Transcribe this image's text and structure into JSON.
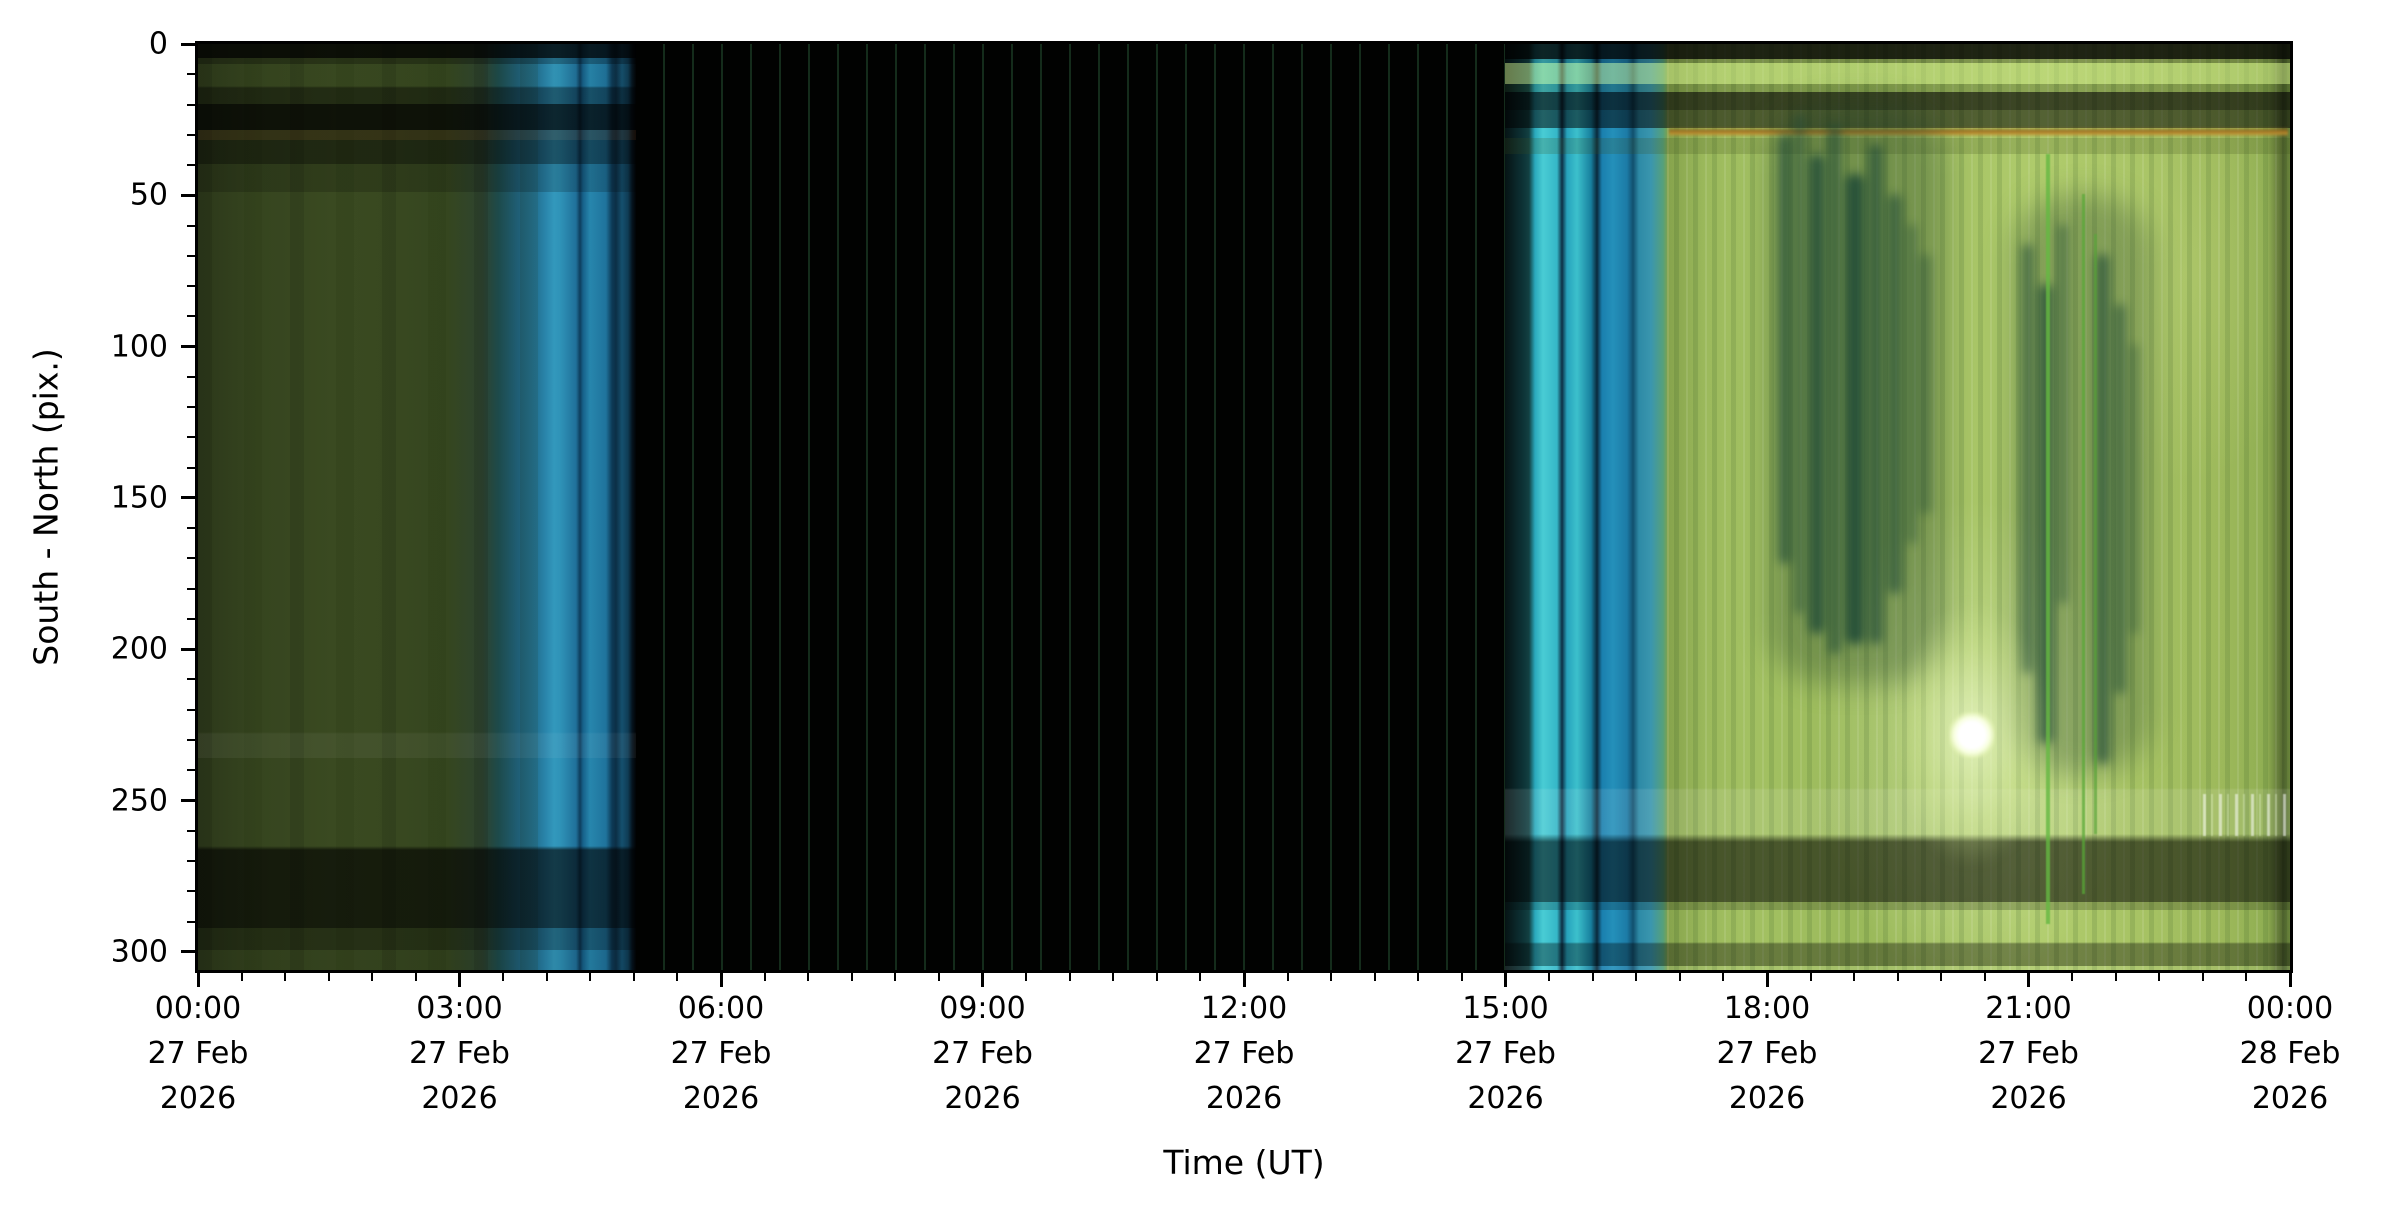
{
  "figure": {
    "xlabel": "Time (UT)",
    "ylabel": "South - North (pix.)"
  },
  "chart_data": {
    "type": "heatmap",
    "subtype": "keogram",
    "title": "",
    "xlabel": "Time (UT)",
    "ylabel": "South - North (pix.)",
    "grid": "off",
    "x_axis": {
      "range_hours": [
        0,
        24
      ],
      "major_tick_interval_hours": 3,
      "minor_tick_interval_minutes": 30,
      "ticks": [
        {
          "time": "00:00",
          "date": "27 Feb",
          "year": "2026"
        },
        {
          "time": "03:00",
          "date": "27 Feb",
          "year": "2026"
        },
        {
          "time": "06:00",
          "date": "27 Feb",
          "year": "2026"
        },
        {
          "time": "09:00",
          "date": "27 Feb",
          "year": "2026"
        },
        {
          "time": "12:00",
          "date": "27 Feb",
          "year": "2026"
        },
        {
          "time": "15:00",
          "date": "27 Feb",
          "year": "2026"
        },
        {
          "time": "18:00",
          "date": "27 Feb",
          "year": "2026"
        },
        {
          "time": "21:00",
          "date": "27 Feb",
          "year": "2026"
        },
        {
          "time": "00:00",
          "date": "28 Feb",
          "year": "2026"
        }
      ]
    },
    "y_axis": {
      "range_pixels": [
        0,
        306
      ],
      "direction": "0 at top (South at top, North at bottom of slice)",
      "major_tick_interval": 50,
      "minor_tick_interval": 10,
      "ticks": [
        "0",
        "50",
        "100",
        "150",
        "200",
        "250",
        "300"
      ]
    },
    "segments": [
      {
        "label": "night airglow, dim olive-green sky",
        "start": "00:00",
        "end": "~04:10",
        "appearance": "dark olive columns; dark cloud/horizon bands near rows 15-30 and 265-295",
        "base_color": "#3a4a21"
      },
      {
        "label": "morning twilight",
        "start": "~04:10",
        "end": "~05:00",
        "appearance": "teal to steel-blue vertical stripes fading into black",
        "base_color": "#2a86ac"
      },
      {
        "label": "daytime, camera off",
        "start": "~05:00",
        "end": "~15:00",
        "appearance": "black with faint dark-green frame-cadence lines every ~20 min",
        "base_color": "#010201"
      },
      {
        "label": "evening twilight",
        "start": "~15:00",
        "end": "~16:40",
        "appearance": "bright cyan-blue vertical stripes",
        "base_color": "#3cc0cc"
      },
      {
        "label": "moonlit night",
        "start": "~16:40",
        "end": "24:00",
        "appearance": "bright yellow-green sky; dark cloud streaks ~18:20-19:40 and ~20:55-22:20; moon glare near row 228 around 20:25; amber light line near row 28",
        "base_color": "#a3c162"
      }
    ],
    "features": [
      {
        "name": "moon glare",
        "time": "~20:25",
        "row": 228,
        "color": "#ffffff"
      },
      {
        "name": "amber scattered-light line",
        "rows": "27-30",
        "extent": "~16:45-24:00",
        "color": "#b07e26"
      },
      {
        "name": "frame cadence lines",
        "interval": "20 min",
        "color": "#204a2c"
      },
      {
        "name": "bright green airglow columns",
        "times": [
          "~21:15",
          "~21:40",
          "~21:48"
        ],
        "color": "#64b840"
      },
      {
        "name": "bright speckle band",
        "rows": "248-262",
        "extent": "~20:50-21:40",
        "color": "#f4ffe0"
      }
    ]
  }
}
